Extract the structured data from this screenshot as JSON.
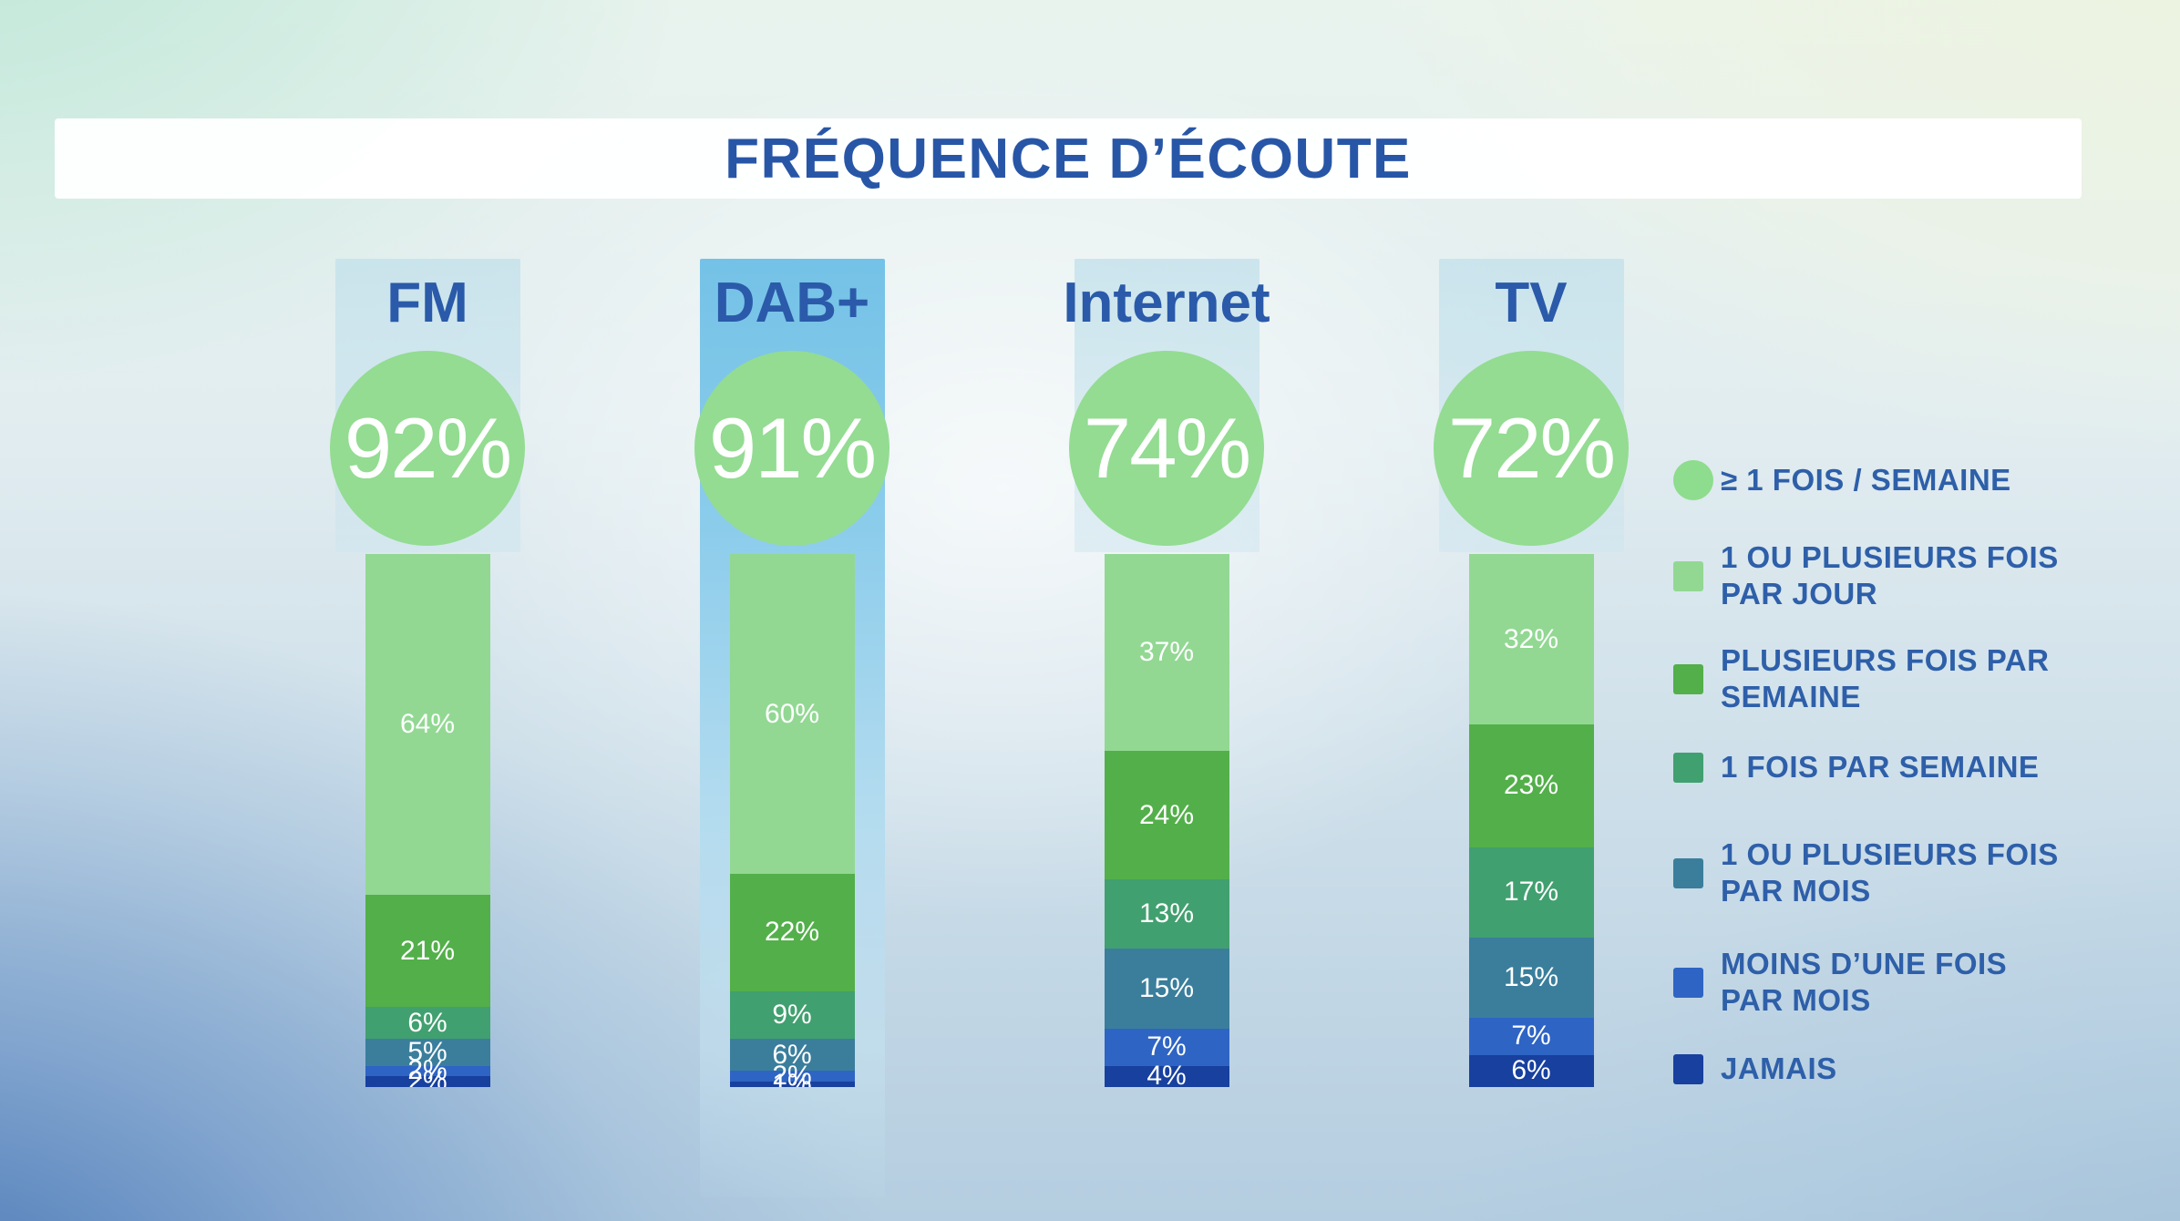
{
  "colors": {
    "title_text": "#2856a7",
    "header_text": "#2a5aa9",
    "legend_text": "#2e5fa9",
    "circle_fill": "#93dc92",
    "value_text": "#ffffff",
    "highlight_band_top": "#74c2e7",
    "column_band": "#cbe4ee",
    "segments": [
      "#92d893",
      "#53af4a",
      "#41a06f",
      "#3a7e9c",
      "#2e64c4",
      "#17409f"
    ]
  },
  "chart_data": {
    "type": "bar",
    "stacked": true,
    "unit": "%",
    "title": "FRÉQUENCE D’ÉCOUTE",
    "categories": [
      "FM",
      "DAB+",
      "Internet",
      "TV"
    ],
    "highlighted_category": "DAB+",
    "circle_labels": [
      "92%",
      "91%",
      "74%",
      "72%"
    ],
    "circle_values": [
      92,
      91,
      74,
      72
    ],
    "series": [
      {
        "name": "1 OU PLUSIEURS FOIS PAR JOUR",
        "values": [
          64,
          60,
          37,
          32
        ]
      },
      {
        "name": "PLUSIEURS FOIS PAR SEMAINE",
        "values": [
          21,
          22,
          24,
          23
        ]
      },
      {
        "name": "1 FOIS PAR SEMAINE",
        "values": [
          6,
          9,
          13,
          17
        ]
      },
      {
        "name": "1 OU PLUSIEURS FOIS PAR MOIS",
        "values": [
          5,
          6,
          15,
          15
        ]
      },
      {
        "name": "MOINS D'UNE FOIS PAR MOIS",
        "values": [
          2,
          2,
          7,
          7
        ]
      },
      {
        "name": "JAMAIS",
        "values": [
          2,
          1,
          4,
          6
        ]
      }
    ],
    "segment_labels": [
      [
        "64%",
        "21%",
        "6%",
        "5%",
        "2%",
        "2%"
      ],
      [
        "60%",
        "22%",
        "9%",
        "6%",
        "2%",
        "1%"
      ],
      [
        "37%",
        "24%",
        "13%",
        "15%",
        "7%",
        "4%"
      ],
      [
        "32%",
        "23%",
        "17%",
        "15%",
        "7%",
        "6%"
      ]
    ],
    "legend": [
      {
        "label": "≥ 1 FOIS / SEMAINE",
        "shape": "circle",
        "color": "#8edc8d"
      },
      {
        "label": "1 OU PLUSIEURS FOIS\nPAR JOUR",
        "shape": "square",
        "color": "#92d893"
      },
      {
        "label": "PLUSIEURS FOIS PAR\nSEMAINE",
        "shape": "square",
        "color": "#53af4a"
      },
      {
        "label": "1 FOIS PAR SEMAINE",
        "shape": "square",
        "color": "#41a06f"
      },
      {
        "label": "1 OU PLUSIEURS FOIS\nPAR MOIS",
        "shape": "square",
        "color": "#3a7e9c"
      },
      {
        "label": "MOINS D’UNE FOIS\nPAR MOIS",
        "shape": "square",
        "color": "#2e64c4"
      },
      {
        "label": "JAMAIS",
        "shape": "square",
        "color": "#17409f"
      }
    ],
    "legend_position": "right",
    "grid": false,
    "ylim": [
      0,
      100
    ]
  }
}
